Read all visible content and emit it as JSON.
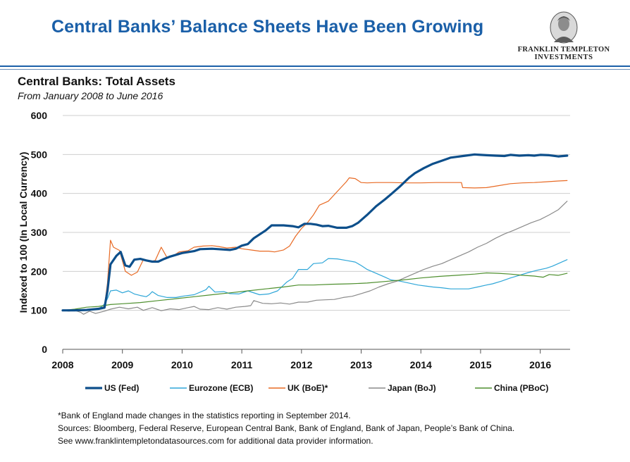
{
  "header": {
    "title": "Central Banks’ Balance Sheets Have Been Growing",
    "logo_line1": "FRANKLIN TEMPLETON",
    "logo_line2": "INVESTMENTS"
  },
  "chart_data": {
    "type": "line",
    "title": "Central Banks: Total Assets",
    "subtitle": "From January 2008 to June 2016",
    "ylabel": "Indexed to 100 (In Local Currency)",
    "xlabel": "",
    "xlim": [
      2008,
      2016.5
    ],
    "ylim": [
      0,
      600
    ],
    "x_ticks": [
      2008,
      2009,
      2010,
      2011,
      2012,
      2013,
      2014,
      2015,
      2016
    ],
    "y_ticks": [
      0,
      100,
      200,
      300,
      400,
      500,
      600
    ],
    "grid": "horizontal",
    "legend_position": "bottom",
    "series": [
      {
        "name": "US (Fed)",
        "color": "#0d4f8b",
        "width": 3.2,
        "points": [
          [
            2008.0,
            100
          ],
          [
            2008.2,
            100
          ],
          [
            2008.4,
            101
          ],
          [
            2008.6,
            104
          ],
          [
            2008.7,
            107
          ],
          [
            2008.75,
            150
          ],
          [
            2008.8,
            218
          ],
          [
            2008.9,
            240
          ],
          [
            2008.97,
            250
          ],
          [
            2009.05,
            215
          ],
          [
            2009.12,
            212
          ],
          [
            2009.2,
            230
          ],
          [
            2009.3,
            232
          ],
          [
            2009.4,
            228
          ],
          [
            2009.5,
            225
          ],
          [
            2009.6,
            225
          ],
          [
            2009.7,
            232
          ],
          [
            2009.8,
            238
          ],
          [
            2010.0,
            247
          ],
          [
            2010.2,
            252
          ],
          [
            2010.3,
            257
          ],
          [
            2010.5,
            258
          ],
          [
            2010.7,
            256
          ],
          [
            2010.8,
            255
          ],
          [
            2010.9,
            258
          ],
          [
            2011.0,
            266
          ],
          [
            2011.1,
            270
          ],
          [
            2011.2,
            285
          ],
          [
            2011.4,
            305
          ],
          [
            2011.5,
            318
          ],
          [
            2011.7,
            318
          ],
          [
            2011.85,
            316
          ],
          [
            2011.95,
            313
          ],
          [
            2012.05,
            322
          ],
          [
            2012.15,
            322
          ],
          [
            2012.25,
            320
          ],
          [
            2012.35,
            316
          ],
          [
            2012.45,
            317
          ],
          [
            2012.6,
            312
          ],
          [
            2012.75,
            312
          ],
          [
            2012.85,
            316
          ],
          [
            2012.95,
            325
          ],
          [
            2013.1,
            345
          ],
          [
            2013.25,
            367
          ],
          [
            2013.4,
            385
          ],
          [
            2013.5,
            398
          ],
          [
            2013.65,
            418
          ],
          [
            2013.8,
            440
          ],
          [
            2013.9,
            452
          ],
          [
            2014.05,
            465
          ],
          [
            2014.2,
            476
          ],
          [
            2014.35,
            484
          ],
          [
            2014.5,
            492
          ],
          [
            2014.6,
            494
          ],
          [
            2014.75,
            497
          ],
          [
            2014.9,
            500
          ],
          [
            2015.0,
            499
          ],
          [
            2015.1,
            498
          ],
          [
            2015.25,
            497
          ],
          [
            2015.4,
            496
          ],
          [
            2015.5,
            499
          ],
          [
            2015.65,
            497
          ],
          [
            2015.8,
            498
          ],
          [
            2015.9,
            497
          ],
          [
            2016.0,
            499
          ],
          [
            2016.15,
            498
          ],
          [
            2016.3,
            495
          ],
          [
            2016.45,
            497
          ]
        ]
      },
      {
        "name": "Eurozone (ECB)",
        "color": "#2ea6d8",
        "width": 1.2,
        "points": [
          [
            2008.0,
            100
          ],
          [
            2008.2,
            102
          ],
          [
            2008.4,
            100
          ],
          [
            2008.6,
            103
          ],
          [
            2008.7,
            116
          ],
          [
            2008.75,
            130
          ],
          [
            2008.8,
            150
          ],
          [
            2008.9,
            152
          ],
          [
            2009.0,
            145
          ],
          [
            2009.1,
            150
          ],
          [
            2009.2,
            142
          ],
          [
            2009.3,
            138
          ],
          [
            2009.4,
            135
          ],
          [
            2009.45,
            140
          ],
          [
            2009.5,
            148
          ],
          [
            2009.6,
            138
          ],
          [
            2009.75,
            133
          ],
          [
            2009.9,
            133
          ],
          [
            2010.0,
            136
          ],
          [
            2010.2,
            140
          ],
          [
            2010.4,
            153
          ],
          [
            2010.45,
            162
          ],
          [
            2010.55,
            147
          ],
          [
            2010.7,
            148
          ],
          [
            2010.8,
            143
          ],
          [
            2010.95,
            142
          ],
          [
            2011.1,
            150
          ],
          [
            2011.3,
            140
          ],
          [
            2011.45,
            142
          ],
          [
            2011.6,
            150
          ],
          [
            2011.75,
            172
          ],
          [
            2011.85,
            182
          ],
          [
            2011.95,
            205
          ],
          [
            2012.1,
            205
          ],
          [
            2012.2,
            220
          ],
          [
            2012.35,
            222
          ],
          [
            2012.45,
            233
          ],
          [
            2012.6,
            232
          ],
          [
            2012.75,
            228
          ],
          [
            2012.9,
            224
          ],
          [
            2013.0,
            215
          ],
          [
            2013.1,
            205
          ],
          [
            2013.25,
            195
          ],
          [
            2013.4,
            185
          ],
          [
            2013.5,
            178
          ],
          [
            2013.65,
            175
          ],
          [
            2013.8,
            170
          ],
          [
            2013.95,
            165
          ],
          [
            2014.1,
            162
          ],
          [
            2014.2,
            160
          ],
          [
            2014.35,
            158
          ],
          [
            2014.5,
            155
          ],
          [
            2014.65,
            155
          ],
          [
            2014.8,
            155
          ],
          [
            2014.95,
            160
          ],
          [
            2015.1,
            165
          ],
          [
            2015.2,
            168
          ],
          [
            2015.35,
            175
          ],
          [
            2015.5,
            183
          ],
          [
            2015.65,
            190
          ],
          [
            2015.8,
            197
          ],
          [
            2015.95,
            203
          ],
          [
            2016.1,
            208
          ],
          [
            2016.2,
            213
          ],
          [
            2016.3,
            220
          ],
          [
            2016.45,
            230
          ]
        ]
      },
      {
        "name": "UK (BoE)*",
        "color": "#e86a24",
        "width": 1.2,
        "points": [
          [
            2008.0,
            100
          ],
          [
            2008.2,
            102
          ],
          [
            2008.4,
            100
          ],
          [
            2008.6,
            103
          ],
          [
            2008.7,
            110
          ],
          [
            2008.75,
            170
          ],
          [
            2008.8,
            280
          ],
          [
            2008.85,
            262
          ],
          [
            2008.95,
            254
          ],
          [
            2009.05,
            200
          ],
          [
            2009.15,
            190
          ],
          [
            2009.25,
            198
          ],
          [
            2009.35,
            230
          ],
          [
            2009.45,
            225
          ],
          [
            2009.55,
            228
          ],
          [
            2009.65,
            262
          ],
          [
            2009.75,
            235
          ],
          [
            2009.85,
            240
          ],
          [
            2009.95,
            250
          ],
          [
            2010.1,
            253
          ],
          [
            2010.2,
            262
          ],
          [
            2010.35,
            265
          ],
          [
            2010.5,
            266
          ],
          [
            2010.6,
            264
          ],
          [
            2010.75,
            260
          ],
          [
            2010.9,
            262
          ],
          [
            2011.0,
            258
          ],
          [
            2011.15,
            255
          ],
          [
            2011.3,
            252
          ],
          [
            2011.45,
            252
          ],
          [
            2011.55,
            250
          ],
          [
            2011.7,
            255
          ],
          [
            2011.8,
            265
          ],
          [
            2011.9,
            290
          ],
          [
            2012.0,
            310
          ],
          [
            2012.1,
            325
          ],
          [
            2012.2,
            345
          ],
          [
            2012.3,
            370
          ],
          [
            2012.45,
            380
          ],
          [
            2012.6,
            405
          ],
          [
            2012.75,
            430
          ],
          [
            2012.8,
            440
          ],
          [
            2012.9,
            438
          ],
          [
            2013.0,
            428
          ],
          [
            2013.1,
            427
          ],
          [
            2013.25,
            428
          ],
          [
            2013.5,
            428
          ],
          [
            2013.75,
            427
          ],
          [
            2014.0,
            427
          ],
          [
            2014.25,
            428
          ],
          [
            2014.5,
            428
          ],
          [
            2014.68,
            428
          ],
          [
            2014.7,
            415
          ],
          [
            2014.9,
            414
          ],
          [
            2015.1,
            415
          ],
          [
            2015.3,
            420
          ],
          [
            2015.5,
            425
          ],
          [
            2015.7,
            427
          ],
          [
            2015.9,
            428
          ],
          [
            2016.1,
            430
          ],
          [
            2016.3,
            432
          ],
          [
            2016.45,
            433
          ]
        ]
      },
      {
        "name": "Japan (BoJ)",
        "color": "#8a8a8a",
        "width": 1.2,
        "points": [
          [
            2008.0,
            100
          ],
          [
            2008.1,
            98
          ],
          [
            2008.2,
            100
          ],
          [
            2008.3,
            95
          ],
          [
            2008.35,
            90
          ],
          [
            2008.45,
            98
          ],
          [
            2008.55,
            92
          ],
          [
            2008.7,
            98
          ],
          [
            2008.8,
            103
          ],
          [
            2008.95,
            108
          ],
          [
            2009.1,
            104
          ],
          [
            2009.25,
            108
          ],
          [
            2009.35,
            100
          ],
          [
            2009.5,
            107
          ],
          [
            2009.65,
            99
          ],
          [
            2009.8,
            104
          ],
          [
            2009.95,
            102
          ],
          [
            2010.1,
            107
          ],
          [
            2010.2,
            110
          ],
          [
            2010.3,
            103
          ],
          [
            2010.45,
            102
          ],
          [
            2010.6,
            107
          ],
          [
            2010.75,
            103
          ],
          [
            2010.9,
            108
          ],
          [
            2011.05,
            110
          ],
          [
            2011.15,
            112
          ],
          [
            2011.2,
            125
          ],
          [
            2011.35,
            118
          ],
          [
            2011.5,
            117
          ],
          [
            2011.65,
            119
          ],
          [
            2011.8,
            116
          ],
          [
            2011.95,
            121
          ],
          [
            2012.1,
            121
          ],
          [
            2012.25,
            126
          ],
          [
            2012.4,
            127
          ],
          [
            2012.55,
            128
          ],
          [
            2012.7,
            133
          ],
          [
            2012.85,
            136
          ],
          [
            2013.0,
            143
          ],
          [
            2013.15,
            150
          ],
          [
            2013.3,
            160
          ],
          [
            2013.45,
            168
          ],
          [
            2013.6,
            175
          ],
          [
            2013.75,
            185
          ],
          [
            2013.9,
            195
          ],
          [
            2014.05,
            205
          ],
          [
            2014.2,
            213
          ],
          [
            2014.35,
            220
          ],
          [
            2014.5,
            230
          ],
          [
            2014.65,
            240
          ],
          [
            2014.8,
            250
          ],
          [
            2014.95,
            262
          ],
          [
            2015.1,
            272
          ],
          [
            2015.25,
            285
          ],
          [
            2015.4,
            296
          ],
          [
            2015.55,
            305
          ],
          [
            2015.7,
            315
          ],
          [
            2015.85,
            325
          ],
          [
            2016.0,
            333
          ],
          [
            2016.15,
            345
          ],
          [
            2016.3,
            358
          ],
          [
            2016.45,
            380
          ]
        ]
      },
      {
        "name": "China (PBoC)",
        "color": "#4e8f2e",
        "width": 1.2,
        "points": [
          [
            2008.0,
            100
          ],
          [
            2008.2,
            103
          ],
          [
            2008.4,
            108
          ],
          [
            2008.6,
            110
          ],
          [
            2008.8,
            115
          ],
          [
            2009.0,
            117
          ],
          [
            2009.3,
            120
          ],
          [
            2009.6,
            125
          ],
          [
            2009.9,
            130
          ],
          [
            2010.2,
            135
          ],
          [
            2010.5,
            140
          ],
          [
            2010.8,
            145
          ],
          [
            2011.1,
            150
          ],
          [
            2011.4,
            155
          ],
          [
            2011.7,
            160
          ],
          [
            2011.95,
            165
          ],
          [
            2012.2,
            165
          ],
          [
            2012.5,
            167
          ],
          [
            2012.8,
            168
          ],
          [
            2013.1,
            170
          ],
          [
            2013.4,
            174
          ],
          [
            2013.7,
            178
          ],
          [
            2014.0,
            183
          ],
          [
            2014.3,
            187
          ],
          [
            2014.6,
            190
          ],
          [
            2014.9,
            193
          ],
          [
            2015.1,
            196
          ],
          [
            2015.3,
            195
          ],
          [
            2015.5,
            193
          ],
          [
            2015.7,
            190
          ],
          [
            2015.9,
            188
          ],
          [
            2016.05,
            185
          ],
          [
            2016.15,
            192
          ],
          [
            2016.3,
            190
          ],
          [
            2016.45,
            195
          ]
        ]
      }
    ]
  },
  "footnotes": [
    "*Bank of England made changes in the statistics reporting in September 2014.",
    "Sources: Bloomberg, Federal Reserve, European Central Bank, Bank of England, Bank of Japan, People’s Bank of China.",
    "See www.franklintempletondatasources.com for additional data provider information."
  ]
}
